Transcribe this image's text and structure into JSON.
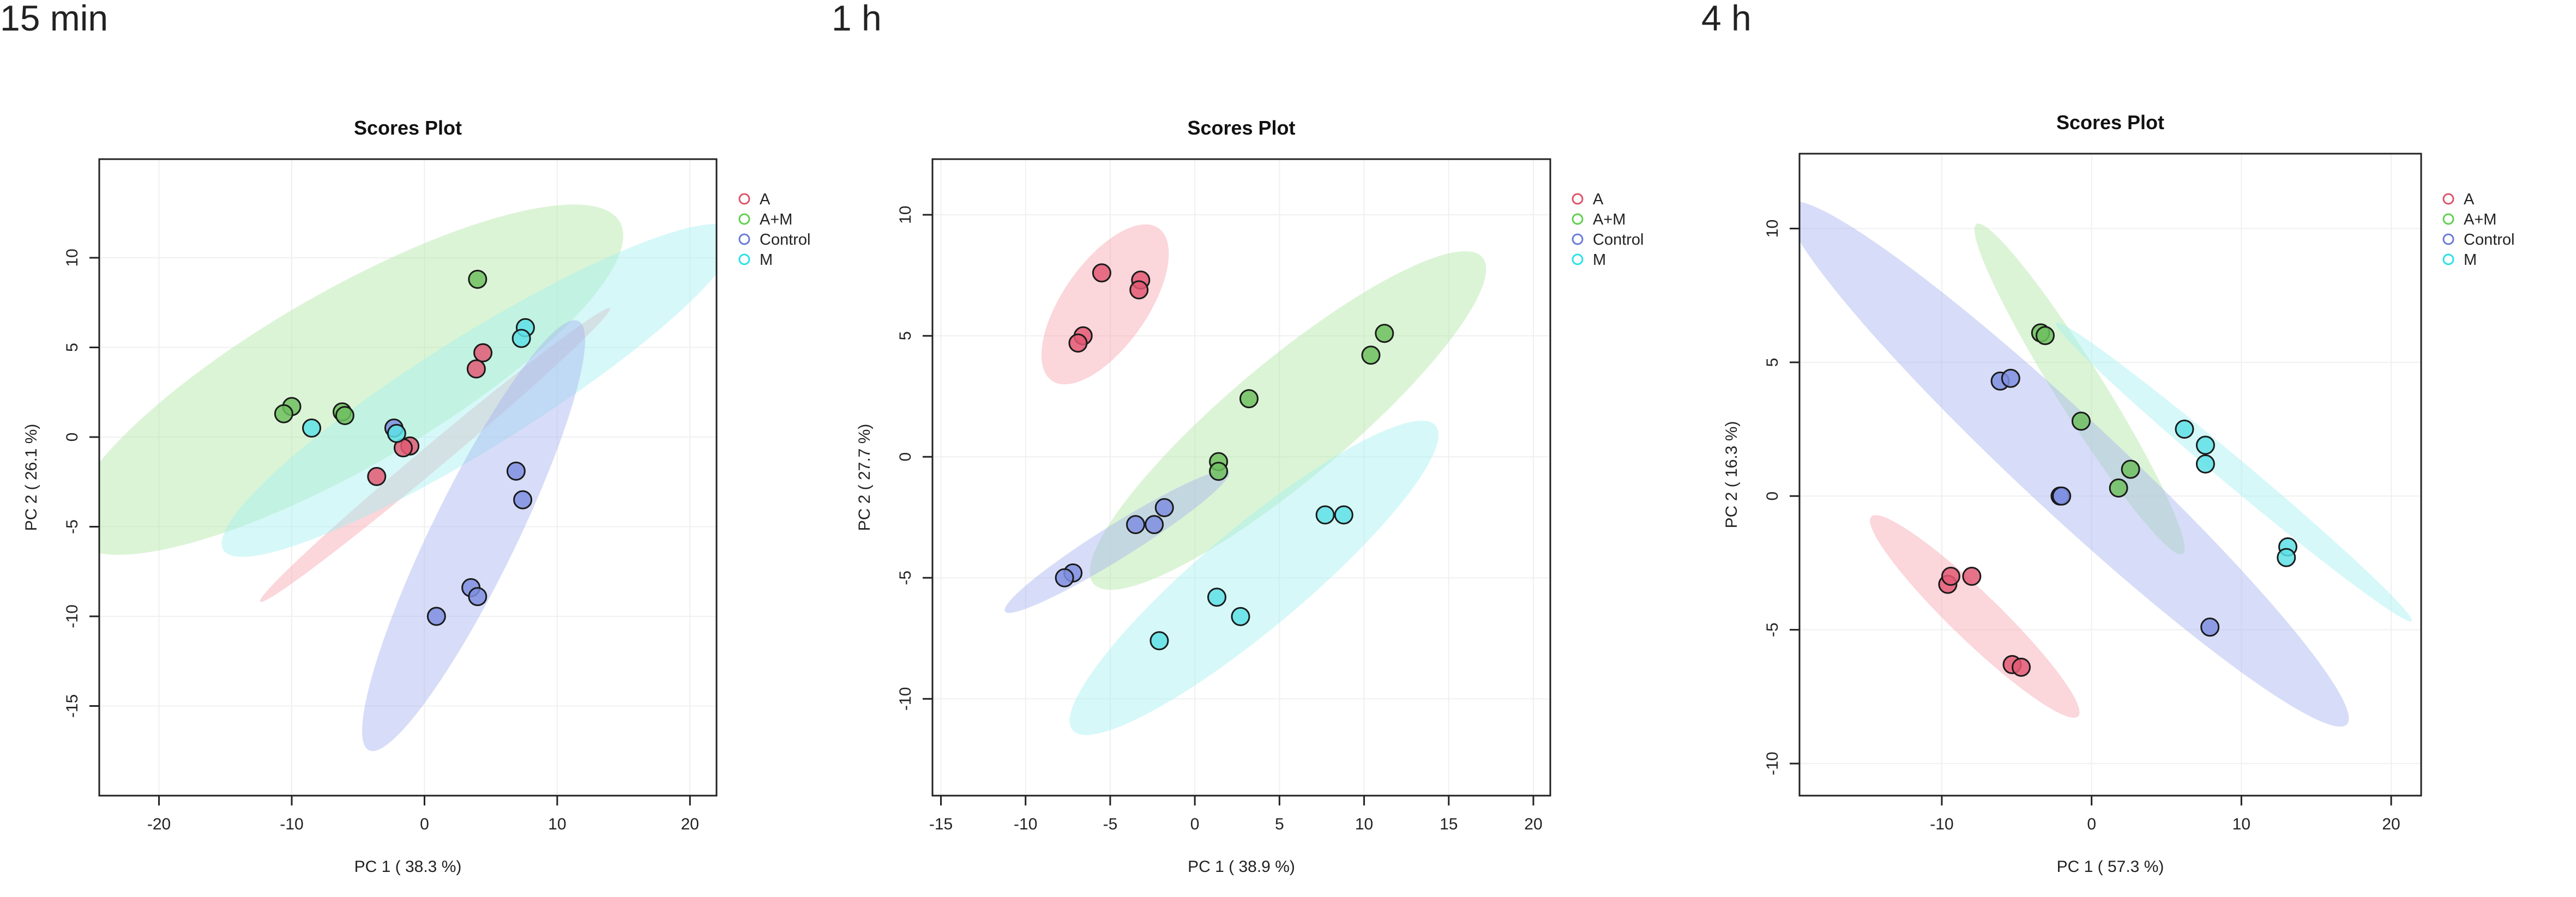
{
  "panels": [
    {
      "timepoint": "15 min",
      "chart_data": {
        "type": "scatter",
        "title": "Scores Plot",
        "xlabel": "PC 1 ( 38.3 %)",
        "ylabel": "PC 2 ( 26.1 %)",
        "xlim": [
          -24.5,
          22
        ],
        "ylim": [
          -20,
          15.5
        ],
        "xticks": [
          -20,
          -10,
          0,
          10,
          20
        ],
        "yticks": [
          -15,
          -10,
          -5,
          0,
          5,
          10
        ],
        "legend": [
          "A",
          "A+M",
          "Control",
          "M"
        ],
        "legend_position": "right",
        "ellipses": [
          {
            "group": "A",
            "cx": 0.8,
            "cy": -1.0,
            "rx": 17.2,
            "ry": 0.9,
            "angle_deg": 40
          },
          {
            "group": "A+M",
            "cx": -5.9,
            "cy": 3.2,
            "rx": 23.8,
            "ry": 6.6,
            "angle_deg": 30
          },
          {
            "group": "M",
            "cx": 4.1,
            "cy": 2.6,
            "rx": 22.7,
            "ry": 4.2,
            "angle_deg": 32
          },
          {
            "group": "Control",
            "cx": 3.7,
            "cy": -5.5,
            "rx": 18.0,
            "ry": 3.2,
            "angle_deg": 64
          }
        ],
        "series": [
          {
            "name": "A",
            "points": [
              [
                4.4,
                4.7
              ],
              [
                3.9,
                3.8
              ],
              [
                -1.1,
                -0.5
              ],
              [
                -1.6,
                -0.6
              ],
              [
                -3.6,
                -2.2
              ]
            ]
          },
          {
            "name": "A+M",
            "points": [
              [
                4.0,
                8.8
              ],
              [
                -10.0,
                1.7
              ],
              [
                -10.6,
                1.3
              ],
              [
                -6.2,
                1.4
              ],
              [
                -6.0,
                1.2
              ]
            ]
          },
          {
            "name": "Control",
            "points": [
              [
                -2.3,
                0.5
              ],
              [
                6.9,
                -1.9
              ],
              [
                7.4,
                -3.5
              ],
              [
                3.5,
                -8.4
              ],
              [
                4.0,
                -8.9
              ],
              [
                0.9,
                -10.0
              ]
            ]
          },
          {
            "name": "M",
            "points": [
              [
                7.6,
                6.1
              ],
              [
                7.3,
                5.5
              ],
              [
                -8.5,
                0.5
              ],
              [
                -2.1,
                0.2
              ]
            ]
          }
        ]
      }
    },
    {
      "timepoint": "1 h",
      "chart_data": {
        "type": "scatter",
        "title": "Scores Plot",
        "xlabel": "PC 1 ( 38.9 %)",
        "ylabel": "PC 2 ( 27.7 %)",
        "xlim": [
          -15.5,
          21
        ],
        "ylim": [
          -14,
          12.3
        ],
        "xticks": [
          -15,
          -10,
          -5,
          0,
          5,
          10,
          15,
          20
        ],
        "yticks": [
          -10,
          -5,
          0,
          5,
          10
        ],
        "legend": [
          "A",
          "A+M",
          "Control",
          "M"
        ],
        "legend_position": "right",
        "ellipses": [
          {
            "group": "A",
            "cx": -5.3,
            "cy": 6.3,
            "rx": 5.5,
            "ry": 2.5,
            "angle_deg": 55
          },
          {
            "group": "A+M",
            "cx": 5.5,
            "cy": 1.5,
            "rx": 15.0,
            "ry": 3.5,
            "angle_deg": 40
          },
          {
            "group": "Control",
            "cx": -4.6,
            "cy": -3.5,
            "rx": 7.8,
            "ry": 1.0,
            "angle_deg": 32
          },
          {
            "group": "M",
            "cx": 3.5,
            "cy": -5.0,
            "rx": 14.0,
            "ry": 3.0,
            "angle_deg": 40
          }
        ],
        "series": [
          {
            "name": "A",
            "points": [
              [
                -5.5,
                7.6
              ],
              [
                -3.2,
                7.3
              ],
              [
                -3.3,
                6.9
              ],
              [
                -6.6,
                5.0
              ],
              [
                -6.9,
                4.7
              ]
            ]
          },
          {
            "name": "A+M",
            "points": [
              [
                11.2,
                5.1
              ],
              [
                10.4,
                4.2
              ],
              [
                3.2,
                2.4
              ],
              [
                1.4,
                -0.2
              ],
              [
                1.4,
                -0.6
              ]
            ]
          },
          {
            "name": "Control",
            "points": [
              [
                -1.8,
                -2.1
              ],
              [
                -3.5,
                -2.8
              ],
              [
                -2.4,
                -2.8
              ],
              [
                -7.2,
                -4.8
              ],
              [
                -7.7,
                -5.0
              ]
            ]
          },
          {
            "name": "M",
            "points": [
              [
                8.8,
                -2.4
              ],
              [
                7.7,
                -2.4
              ],
              [
                1.3,
                -5.8
              ],
              [
                2.7,
                -6.6
              ],
              [
                -2.1,
                -7.6
              ]
            ]
          }
        ]
      }
    },
    {
      "timepoint": "4 h",
      "chart_data": {
        "type": "scatter",
        "title": "Scores Plot",
        "xlabel": "PC 1 ( 57.3 %)",
        "ylabel": "PC 2 ( 16.3 %)",
        "xlim": [
          -19.5,
          22
        ],
        "ylim": [
          -11.2,
          12.8
        ],
        "xticks": [
          -10,
          0,
          10,
          20
        ],
        "yticks": [
          -10,
          -5,
          0,
          5,
          10
        ],
        "legend": [
          "A",
          "A+M",
          "Control",
          "M"
        ],
        "legend_position": "right",
        "ellipses": [
          {
            "group": "A",
            "cx": -7.8,
            "cy": -4.5,
            "rx": 9.6,
            "ry": 1.6,
            "angle_deg": -44
          },
          {
            "group": "A+M",
            "cx": -0.8,
            "cy": 4.0,
            "rx": 13.0,
            "ry": 1.6,
            "angle_deg": -58
          },
          {
            "group": "Control",
            "cx": -1.6,
            "cy": 1.2,
            "rx": 25.5,
            "ry": 3.2,
            "angle_deg": -43
          },
          {
            "group": "M",
            "cx": 9.5,
            "cy": 0.9,
            "rx": 15.5,
            "ry": 0.9,
            "angle_deg": -40
          }
        ],
        "series": [
          {
            "name": "A",
            "points": [
              [
                -9.6,
                -3.3
              ],
              [
                -9.4,
                -3.0
              ],
              [
                -8.0,
                -3.0
              ],
              [
                -5.3,
                -6.3
              ],
              [
                -4.7,
                -6.4
              ]
            ]
          },
          {
            "name": "A+M",
            "points": [
              [
                -3.4,
                6.1
              ],
              [
                -3.1,
                6.0
              ],
              [
                -0.7,
                2.8
              ],
              [
                2.6,
                1.0
              ],
              [
                1.8,
                0.3
              ]
            ]
          },
          {
            "name": "Control",
            "points": [
              [
                -6.1,
                4.3
              ],
              [
                -5.4,
                4.4
              ],
              [
                -2.1,
                0.0
              ],
              [
                -2.0,
                0.0
              ],
              [
                7.9,
                -4.9
              ]
            ]
          },
          {
            "name": "M",
            "points": [
              [
                6.2,
                2.5
              ],
              [
                7.6,
                1.9
              ],
              [
                7.6,
                1.2
              ],
              [
                13.1,
                -1.9
              ],
              [
                13.0,
                -2.3
              ]
            ]
          }
        ]
      }
    }
  ],
  "colors": {
    "A": {
      "fill": "#f7a4b0",
      "marker": "#e25a74",
      "legend": "#df536b"
    },
    "A+M": {
      "fill": "#b0e6a4",
      "marker": "#6fbf5f",
      "legend": "#61d04f"
    },
    "Control": {
      "fill": "#a6b4f0",
      "marker": "#7f8fe0",
      "legend": "#6a7ad8"
    },
    "M": {
      "fill": "#a4f0f0",
      "marker": "#5ee0e6",
      "legend": "#28e2e5"
    }
  }
}
